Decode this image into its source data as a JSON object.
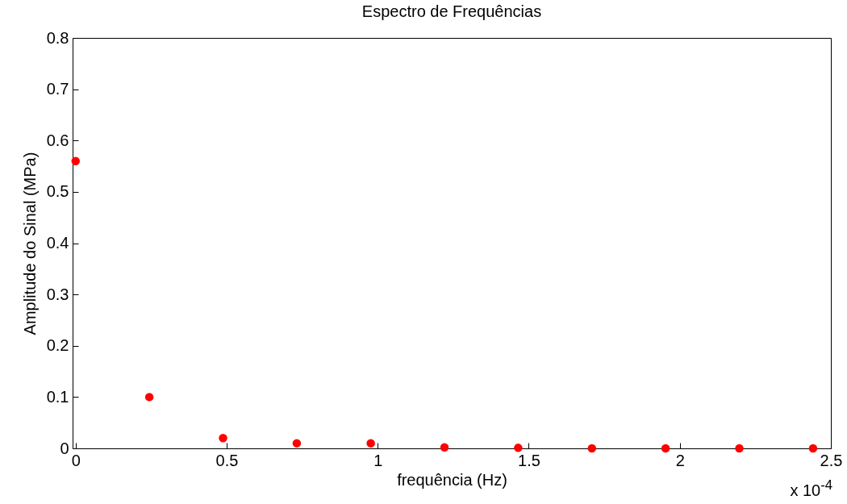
{
  "chart_data": {
    "type": "scatter",
    "title": "Espectro de Frequências",
    "xlabel": "frequência (Hz)",
    "ylabel": "Amplitude do Sinal (MPa)",
    "x": [
      0,
      0.244,
      0.488,
      0.732,
      0.977,
      1.221,
      1.465,
      1.709,
      1.953,
      2.197,
      2.441
    ],
    "series": [
      {
        "color": "#ff0000",
        "values": [
          0.56,
          0.1,
          0.02,
          0.01,
          0.01,
          0.002,
          0.001,
          0,
          0,
          0,
          0
        ]
      }
    ],
    "xlim": [
      -0.01,
      2.5
    ],
    "xticks": [
      0,
      0.5,
      1,
      1.5,
      2,
      2.5
    ],
    "ylim": [
      0,
      0.8
    ],
    "yticks": [
      0,
      0.1,
      0.2,
      0.3,
      0.4,
      0.5,
      0.6,
      0.7,
      0.8
    ],
    "marker": "circle",
    "grid": false,
    "annotations": [
      "x 10$^{-4}$"
    ]
  }
}
